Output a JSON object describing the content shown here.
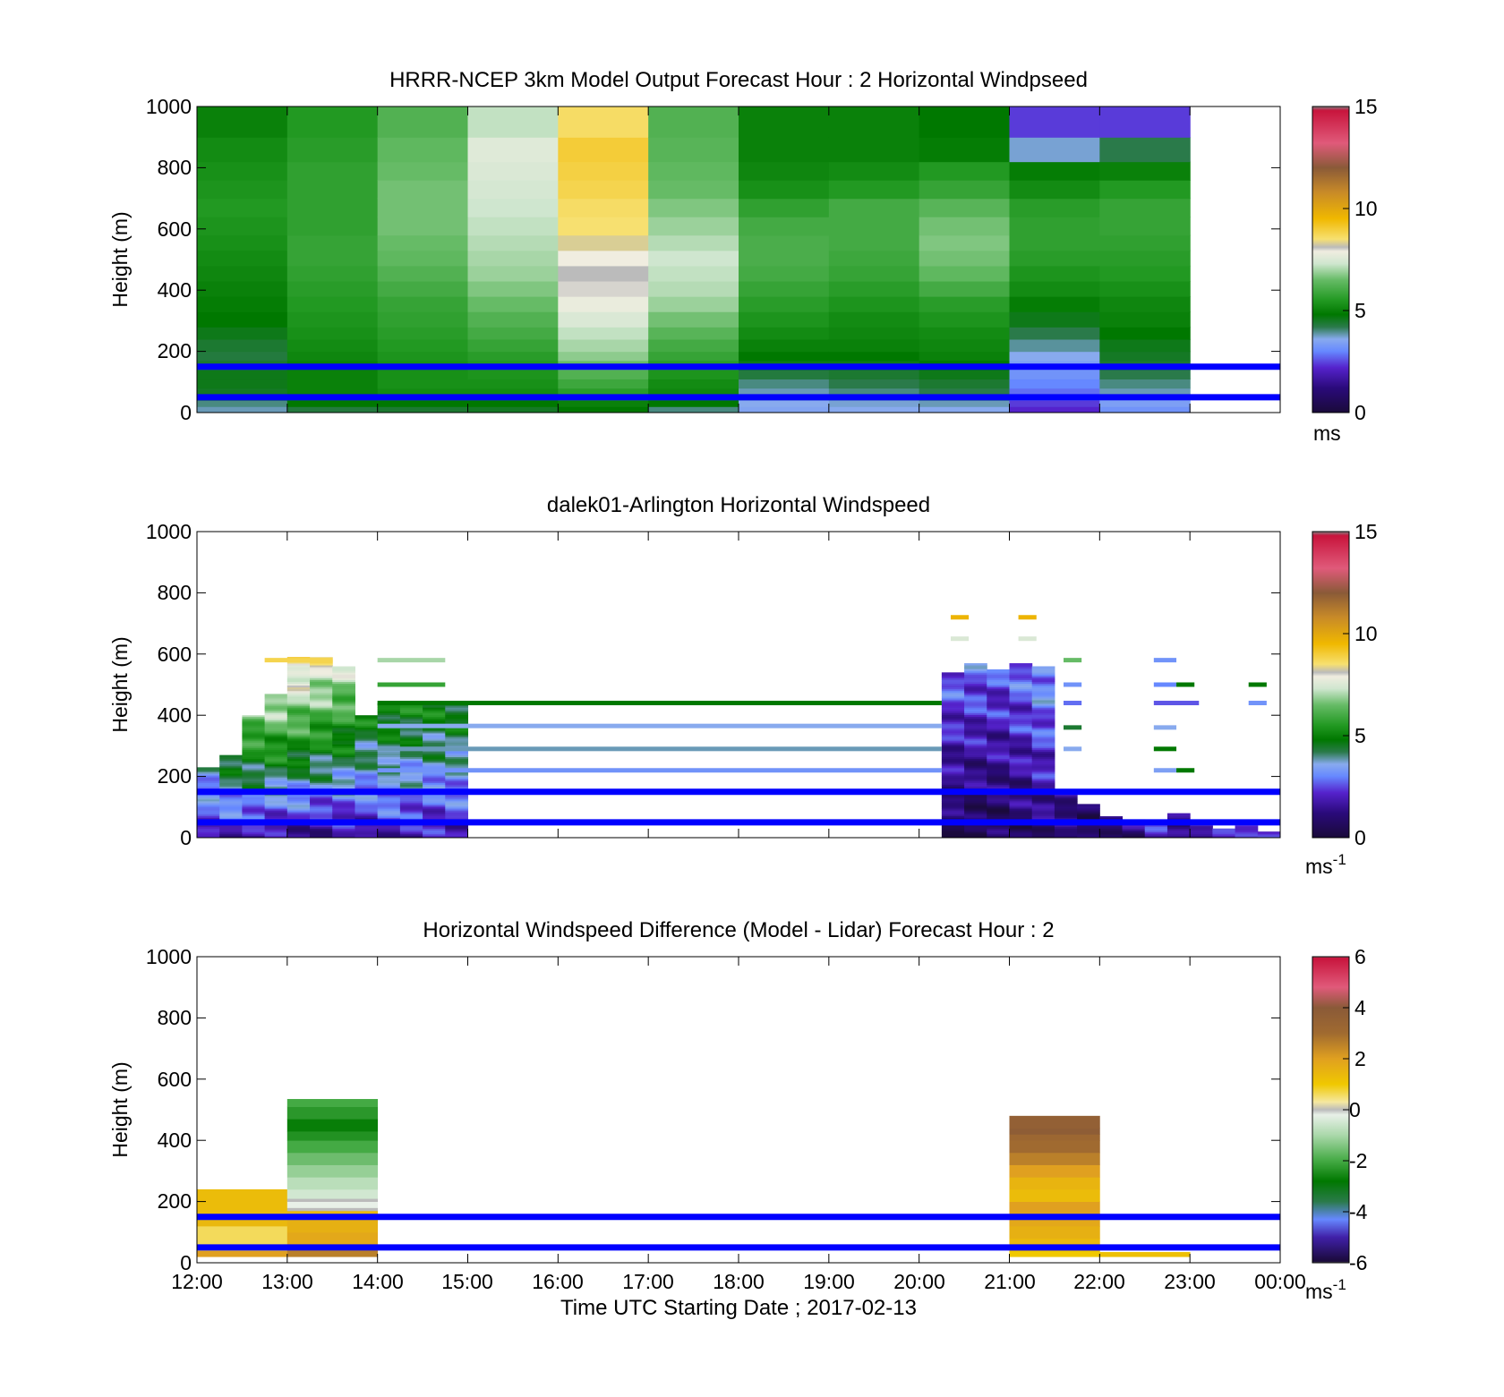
{
  "figure": {
    "xlabel": "Time UTC  Starting Date ; 2017-02-13",
    "x_ticks": [
      "12:00",
      "13:00",
      "14:00",
      "15:00",
      "16:00",
      "17:00",
      "18:00",
      "19:00",
      "20:00",
      "21:00",
      "22:00",
      "23:00",
      "00:00"
    ],
    "reference_heights_m": [
      150,
      50
    ],
    "reference_color": "#0000ff"
  },
  "colors": {
    "speed_scale": [
      [
        0.0,
        "#808080"
      ],
      [
        0.01,
        "#1a0a3a"
      ],
      [
        1.2,
        "#2a0a7a"
      ],
      [
        2.2,
        "#5522cc"
      ],
      [
        3.0,
        "#6688ff"
      ],
      [
        3.6,
        "#88aaee"
      ],
      [
        4.2,
        "#2a7a4a"
      ],
      [
        4.8,
        "#007800"
      ],
      [
        5.5,
        "#229922"
      ],
      [
        6.5,
        "#66bb66"
      ],
      [
        7.3,
        "#cfe6cf"
      ],
      [
        7.9,
        "#f0ede0"
      ],
      [
        8.1,
        "#bbbbbb"
      ],
      [
        8.5,
        "#f7e070"
      ],
      [
        9.5,
        "#f0b800"
      ],
      [
        10.8,
        "#c88a28"
      ],
      [
        12.0,
        "#8a5a38"
      ],
      [
        13.2,
        "#e05a7a"
      ],
      [
        14.8,
        "#c8143c"
      ],
      [
        15.0,
        "#808080"
      ]
    ],
    "diff_scale": [
      [
        -6.0,
        "#808080"
      ],
      [
        -5.95,
        "#1a0a3a"
      ],
      [
        -5.0,
        "#4020a8"
      ],
      [
        -4.3,
        "#6688ff"
      ],
      [
        -3.6,
        "#2a7a4a"
      ],
      [
        -2.8,
        "#007800"
      ],
      [
        -2.0,
        "#44aa44"
      ],
      [
        -1.0,
        "#aad8aa"
      ],
      [
        -0.2,
        "#e8f0e8"
      ],
      [
        0.0,
        "#bbbbbb"
      ],
      [
        0.3,
        "#f5e8a0"
      ],
      [
        1.0,
        "#f0c800"
      ],
      [
        2.0,
        "#e0a020"
      ],
      [
        3.0,
        "#a06a30"
      ],
      [
        4.0,
        "#8a5a38"
      ],
      [
        4.8,
        "#e05a7a"
      ],
      [
        5.95,
        "#c8143c"
      ],
      [
        6.0,
        "#808080"
      ]
    ]
  },
  "chart_data": [
    {
      "type": "heatmap",
      "title": "HRRR-NCEP 3km Model Output   Forecast Hour : 2 Horizontal Windpseed",
      "ylabel": "Height (m)",
      "xlim": [
        "12:00",
        "00:00"
      ],
      "ylim": [
        0,
        1000
      ],
      "y_ticks": [
        0,
        200,
        400,
        600,
        800,
        1000
      ],
      "colorbar": {
        "min": 0,
        "max": 15,
        "ticks": [
          0,
          5,
          10,
          15
        ],
        "unit": "ms",
        "scale": "speed_scale"
      },
      "columns_hours_utc": [
        12,
        13,
        14,
        15,
        16,
        17,
        18,
        19,
        20,
        21,
        22
      ],
      "column_width_h": 1,
      "levels_m": [
        0,
        20,
        40,
        60,
        80,
        110,
        140,
        170,
        200,
        240,
        280,
        330,
        380,
        430,
        480,
        530,
        580,
        640,
        700,
        760,
        820,
        900,
        1000
      ],
      "values_ms": [
        [
          3.8,
          4.0,
          4.2,
          4.5,
          4.6,
          4.6,
          4.4,
          4.3,
          4.4,
          4.6,
          4.8,
          4.9,
          5.0,
          5.1,
          5.2,
          5.3,
          5.4,
          5.5,
          5.4,
          5.3,
          5.2,
          5.0
        ],
        [
          4.3,
          4.8,
          4.9,
          5.0,
          5.0,
          5.0,
          5.0,
          5.1,
          5.2,
          5.3,
          5.4,
          5.5,
          5.6,
          5.7,
          5.8,
          5.8,
          5.7,
          5.7,
          5.7,
          5.7,
          5.6,
          5.5
        ],
        [
          4.4,
          4.8,
          5.0,
          5.2,
          5.3,
          5.3,
          5.3,
          5.4,
          5.5,
          5.6,
          5.7,
          5.8,
          6.0,
          6.2,
          6.4,
          6.5,
          6.6,
          6.6,
          6.6,
          6.5,
          6.4,
          6.2
        ],
        [
          4.5,
          4.8,
          5.0,
          5.2,
          5.3,
          5.4,
          5.5,
          5.6,
          5.8,
          6.0,
          6.2,
          6.5,
          6.7,
          6.9,
          7.0,
          7.1,
          7.2,
          7.3,
          7.4,
          7.5,
          7.6,
          7.2
        ],
        [
          4.8,
          5.0,
          5.3,
          5.6,
          5.9,
          6.2,
          6.5,
          6.8,
          7.0,
          7.2,
          7.5,
          7.8,
          8.0,
          8.1,
          7.9,
          8.3,
          8.5,
          8.6,
          8.8,
          8.9,
          9.0,
          8.6
        ],
        [
          4.0,
          4.8,
          5.0,
          5.1,
          5.2,
          5.4,
          5.6,
          5.8,
          6.0,
          6.3,
          6.6,
          6.9,
          7.1,
          7.2,
          7.3,
          7.1,
          6.9,
          6.7,
          6.5,
          6.4,
          6.3,
          6.2
        ],
        [
          3.5,
          3.6,
          3.7,
          3.8,
          4.0,
          4.3,
          4.6,
          4.8,
          5.0,
          5.2,
          5.4,
          5.6,
          5.8,
          6.0,
          6.1,
          6.1,
          6.0,
          5.7,
          5.3,
          5.1,
          5.0,
          5.0
        ],
        [
          3.6,
          3.7,
          3.8,
          4.0,
          4.2,
          4.4,
          4.6,
          4.8,
          5.0,
          5.1,
          5.2,
          5.4,
          5.6,
          5.8,
          5.9,
          6.0,
          6.0,
          6.0,
          5.5,
          5.2,
          5.0,
          5.0
        ],
        [
          3.6,
          3.8,
          4.0,
          4.2,
          4.4,
          4.6,
          4.8,
          5.0,
          5.1,
          5.2,
          5.4,
          5.6,
          6.0,
          6.4,
          6.6,
          6.7,
          6.6,
          6.3,
          5.8,
          5.5,
          4.9,
          4.8
        ],
        [
          2.2,
          2.4,
          2.6,
          2.8,
          3.0,
          3.2,
          3.4,
          3.6,
          3.9,
          4.2,
          4.6,
          4.9,
          5.2,
          5.4,
          5.6,
          5.7,
          5.7,
          5.6,
          5.2,
          4.9,
          3.7,
          2.4
        ],
        [
          3.2,
          3.4,
          3.6,
          3.8,
          4.0,
          4.2,
          4.4,
          4.5,
          4.6,
          4.8,
          5.0,
          5.1,
          5.3,
          5.5,
          5.6,
          5.7,
          5.8,
          5.8,
          5.5,
          5.0,
          4.2,
          2.4
        ]
      ]
    },
    {
      "type": "heatmap",
      "title": "dalek01-Arlington  Horizontal Windspeed",
      "ylabel": "Height (m)",
      "xlim": [
        "12:00",
        "00:00"
      ],
      "ylim": [
        0,
        1000
      ],
      "y_ticks": [
        0,
        200,
        400,
        600,
        800,
        1000
      ],
      "colorbar": {
        "min": 0,
        "max": 15,
        "ticks": [
          0,
          5,
          10,
          15
        ],
        "unit": "ms",
        "unit_exponent": "-1",
        "scale": "speed_scale"
      },
      "profile_width_h": 0.25,
      "profiles": [
        {
          "t": 12.0,
          "top": 230,
          "low": 2.0,
          "high": 3.6
        },
        {
          "t": 12.25,
          "top": 270,
          "low": 1.8,
          "high": 4.8
        },
        {
          "t": 12.5,
          "top": 400,
          "low": 1.6,
          "high": 6.6
        },
        {
          "t": 12.75,
          "top": 470,
          "low": 1.4,
          "high": 7.6
        },
        {
          "t": 13.0,
          "top": 590,
          "low": 1.3,
          "high": 8.6
        },
        {
          "t": 13.25,
          "top": 590,
          "low": 1.2,
          "high": 8.2
        },
        {
          "t": 13.5,
          "top": 560,
          "low": 1.4,
          "high": 7.4
        },
        {
          "t": 13.75,
          "top": 400,
          "low": 1.6,
          "high": 5.0
        },
        {
          "t": 14.0,
          "top": 440,
          "low": 1.8,
          "high": 5.4
        },
        {
          "t": 14.25,
          "top": 440,
          "low": 1.8,
          "high": 5.2
        },
        {
          "t": 14.5,
          "top": 440,
          "low": 1.7,
          "high": 5.1
        },
        {
          "t": 14.75,
          "top": 440,
          "low": 1.8,
          "high": 5.0
        },
        {
          "t": 20.25,
          "top": 540,
          "low": 0.5,
          "high": 2.8
        },
        {
          "t": 20.5,
          "top": 570,
          "low": 0.3,
          "high": 2.9
        },
        {
          "t": 20.75,
          "top": 550,
          "low": 0.5,
          "high": 2.6
        },
        {
          "t": 21.0,
          "top": 570,
          "low": 0.6,
          "high": 3.0
        },
        {
          "t": 21.25,
          "top": 560,
          "low": 0.9,
          "high": 3.4
        },
        {
          "t": 21.5,
          "top": 150,
          "low": 0.8,
          "high": 1.6
        },
        {
          "t": 21.75,
          "top": 110,
          "low": 0.5,
          "high": 1.2
        },
        {
          "t": 22.0,
          "top": 70,
          "low": 1.0,
          "high": 1.6
        },
        {
          "t": 22.25,
          "top": 60,
          "low": 1.2,
          "high": 1.8
        },
        {
          "t": 22.5,
          "top": 50,
          "low": 1.6,
          "high": 2.2
        },
        {
          "t": 22.75,
          "top": 80,
          "low": 1.2,
          "high": 2.0
        },
        {
          "t": 23.0,
          "top": 40,
          "low": 1.8,
          "high": 2.4
        },
        {
          "t": 23.25,
          "top": 30,
          "low": 2.0,
          "high": 2.6
        },
        {
          "t": 23.5,
          "top": 40,
          "low": 1.6,
          "high": 2.2
        },
        {
          "t": 23.75,
          "top": 20,
          "low": 2.2,
          "high": 2.8
        }
      ],
      "streaks": [
        {
          "t0": 14.0,
          "t1": 20.25,
          "z": 440,
          "v": 4.8
        },
        {
          "t0": 14.0,
          "t1": 20.25,
          "z": 365,
          "v": 3.6
        },
        {
          "t0": 14.0,
          "t1": 20.25,
          "z": 290,
          "v": 3.8
        },
        {
          "t0": 14.0,
          "t1": 20.25,
          "z": 220,
          "v": 3.2
        },
        {
          "t0": 14.0,
          "t1": 14.75,
          "z": 580,
          "v": 7.0
        },
        {
          "t0": 14.0,
          "t1": 14.75,
          "z": 500,
          "v": 5.8
        },
        {
          "t0": 12.75,
          "t1": 13.5,
          "z": 580,
          "v": 8.8
        },
        {
          "t0": 20.35,
          "t1": 20.55,
          "z": 720,
          "v": 9.6
        },
        {
          "t0": 21.1,
          "t1": 21.3,
          "z": 720,
          "v": 9.6
        },
        {
          "t0": 20.35,
          "t1": 20.55,
          "z": 650,
          "v": 7.5
        },
        {
          "t0": 21.1,
          "t1": 21.3,
          "z": 650,
          "v": 7.5
        },
        {
          "t0": 21.6,
          "t1": 21.8,
          "z": 580,
          "v": 6.5
        },
        {
          "t0": 21.6,
          "t1": 21.8,
          "z": 500,
          "v": 3.2
        },
        {
          "t0": 21.6,
          "t1": 21.8,
          "z": 440,
          "v": 2.8
        },
        {
          "t0": 21.6,
          "t1": 21.8,
          "z": 360,
          "v": 4.4
        },
        {
          "t0": 21.6,
          "t1": 21.8,
          "z": 290,
          "v": 3.6
        },
        {
          "t0": 22.6,
          "t1": 22.85,
          "z": 580,
          "v": 3.2
        },
        {
          "t0": 22.6,
          "t1": 22.85,
          "z": 500,
          "v": 3.0
        },
        {
          "t0": 22.6,
          "t1": 23.1,
          "z": 440,
          "v": 2.6
        },
        {
          "t0": 22.6,
          "t1": 22.85,
          "z": 360,
          "v": 3.6
        },
        {
          "t0": 22.6,
          "t1": 22.85,
          "z": 290,
          "v": 4.8
        },
        {
          "t0": 22.6,
          "t1": 22.85,
          "z": 220,
          "v": 3.4
        },
        {
          "t0": 22.85,
          "t1": 23.05,
          "z": 500,
          "v": 4.8
        },
        {
          "t0": 22.85,
          "t1": 23.05,
          "z": 220,
          "v": 4.8
        },
        {
          "t0": 23.65,
          "t1": 23.85,
          "z": 500,
          "v": 4.8
        },
        {
          "t0": 23.65,
          "t1": 23.85,
          "z": 440,
          "v": 3.2
        }
      ]
    },
    {
      "type": "heatmap",
      "title": "Horizontal Windspeed Difference (Model - Lidar) Forecast Hour : 2",
      "ylabel": "Height (m)",
      "xlabel": "Time UTC  Starting Date ; 2017-02-13",
      "xlim": [
        "12:00",
        "00:00"
      ],
      "ylim": [
        0,
        1000
      ],
      "y_ticks": [
        0,
        200,
        400,
        600,
        800,
        1000
      ],
      "colorbar": {
        "min": -6,
        "max": 6,
        "ticks": [
          -6,
          -4,
          -2,
          0,
          2,
          4,
          6
        ],
        "unit": "ms",
        "unit_exponent": "-1",
        "scale": "diff_scale"
      },
      "blocks": [
        {
          "t0": 12.0,
          "t1": 13.0,
          "bands": [
            [
              20,
              40,
              2.0
            ],
            [
              40,
              120,
              0.6
            ],
            [
              120,
              140,
              1.4
            ],
            [
              140,
              240,
              1.3
            ]
          ]
        },
        {
          "t0": 13.0,
          "t1": 14.0,
          "bands": [
            [
              20,
              40,
              2.6
            ],
            [
              40,
              60,
              2.2
            ],
            [
              60,
              100,
              1.8
            ],
            [
              100,
              140,
              1.6
            ],
            [
              140,
              170,
              1.4
            ],
            [
              170,
              180,
              0.0
            ],
            [
              180,
              200,
              -0.2
            ],
            [
              200,
              210,
              0.0
            ],
            [
              210,
              240,
              -0.5
            ],
            [
              240,
              280,
              -0.8
            ],
            [
              280,
              320,
              -1.2
            ],
            [
              320,
              360,
              -1.6
            ],
            [
              360,
              400,
              -2.0
            ],
            [
              400,
              430,
              -2.4
            ],
            [
              430,
              470,
              -2.7
            ],
            [
              470,
              510,
              -2.3
            ],
            [
              510,
              535,
              -2.0
            ]
          ]
        },
        {
          "t0": 21.0,
          "t1": 22.0,
          "bands": [
            [
              20,
              40,
              1.0
            ],
            [
              40,
              80,
              1.4
            ],
            [
              80,
              120,
              1.6
            ],
            [
              120,
              160,
              1.8
            ],
            [
              160,
              200,
              2.0
            ],
            [
              200,
              240,
              1.3
            ],
            [
              240,
              280,
              1.5
            ],
            [
              280,
              320,
              2.0
            ],
            [
              320,
              360,
              2.6
            ],
            [
              360,
              400,
              3.0
            ],
            [
              400,
              420,
              3.2
            ],
            [
              420,
              440,
              3.8
            ],
            [
              440,
              480,
              3.6
            ]
          ]
        },
        {
          "t0": 22.0,
          "t1": 23.0,
          "bands": [
            [
              20,
              35,
              1.2
            ]
          ]
        }
      ]
    }
  ]
}
